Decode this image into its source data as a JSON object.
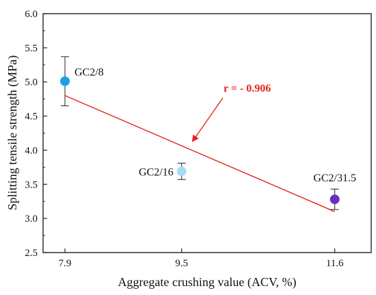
{
  "chart_data": {
    "type": "scatter",
    "xlabel": "Aggregate crushing value (ACV, %)",
    "ylabel": "Splitting tensile strength (MPa)",
    "xlim": [
      7.6,
      12.1
    ],
    "ylim": [
      2.5,
      6.0
    ],
    "x_ticks": [
      "7.9",
      "9.5",
      "11.6"
    ],
    "y_ticks": [
      "2.5",
      "3.0",
      "3.5",
      "4.0",
      "4.5",
      "5.0",
      "5.5",
      "6.0"
    ],
    "grid": false,
    "points": [
      {
        "label": "GC2/8",
        "x": 7.9,
        "y": 5.01,
        "err": 0.36,
        "color": "#1e9fe6"
      },
      {
        "label": "GC2/16",
        "x": 9.5,
        "y": 3.69,
        "err": 0.12,
        "color": "#a8dcf5"
      },
      {
        "label": "GC2/31.5",
        "x": 11.6,
        "y": 3.28,
        "err": 0.15,
        "color": "#6a2fc0"
      }
    ],
    "fit_line": {
      "x": [
        7.9,
        11.6
      ],
      "y": [
        4.8,
        3.1
      ],
      "color": "#e8211b"
    },
    "annotation": {
      "text": "r = - 0.906",
      "color": "#e8211b"
    }
  }
}
